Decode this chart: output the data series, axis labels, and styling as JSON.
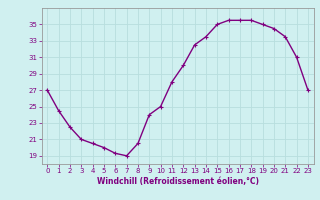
{
  "x": [
    0,
    1,
    2,
    3,
    4,
    5,
    6,
    7,
    8,
    9,
    10,
    11,
    12,
    13,
    14,
    15,
    16,
    17,
    18,
    19,
    20,
    21,
    22,
    23
  ],
  "y": [
    27,
    24.5,
    22.5,
    21,
    20.5,
    20,
    19.3,
    19,
    20.5,
    24,
    25,
    28,
    30,
    32.5,
    33.5,
    35,
    35.5,
    35.5,
    35.5,
    35,
    34.5,
    33.5,
    31,
    27
  ],
  "line_color": "#800080",
  "marker": "+",
  "bg_color": "#d0f0f0",
  "grid_color": "#b8dede",
  "xlabel": "Windchill (Refroidissement éolien,°C)",
  "xlabel_color": "#800080",
  "tick_color": "#800080",
  "ylim": [
    18,
    37
  ],
  "xlim": [
    -0.5,
    23.5
  ],
  "yticks": [
    19,
    21,
    23,
    25,
    27,
    29,
    31,
    33,
    35
  ],
  "xticks": [
    0,
    1,
    2,
    3,
    4,
    5,
    6,
    7,
    8,
    9,
    10,
    11,
    12,
    13,
    14,
    15,
    16,
    17,
    18,
    19,
    20,
    21,
    22,
    23
  ]
}
